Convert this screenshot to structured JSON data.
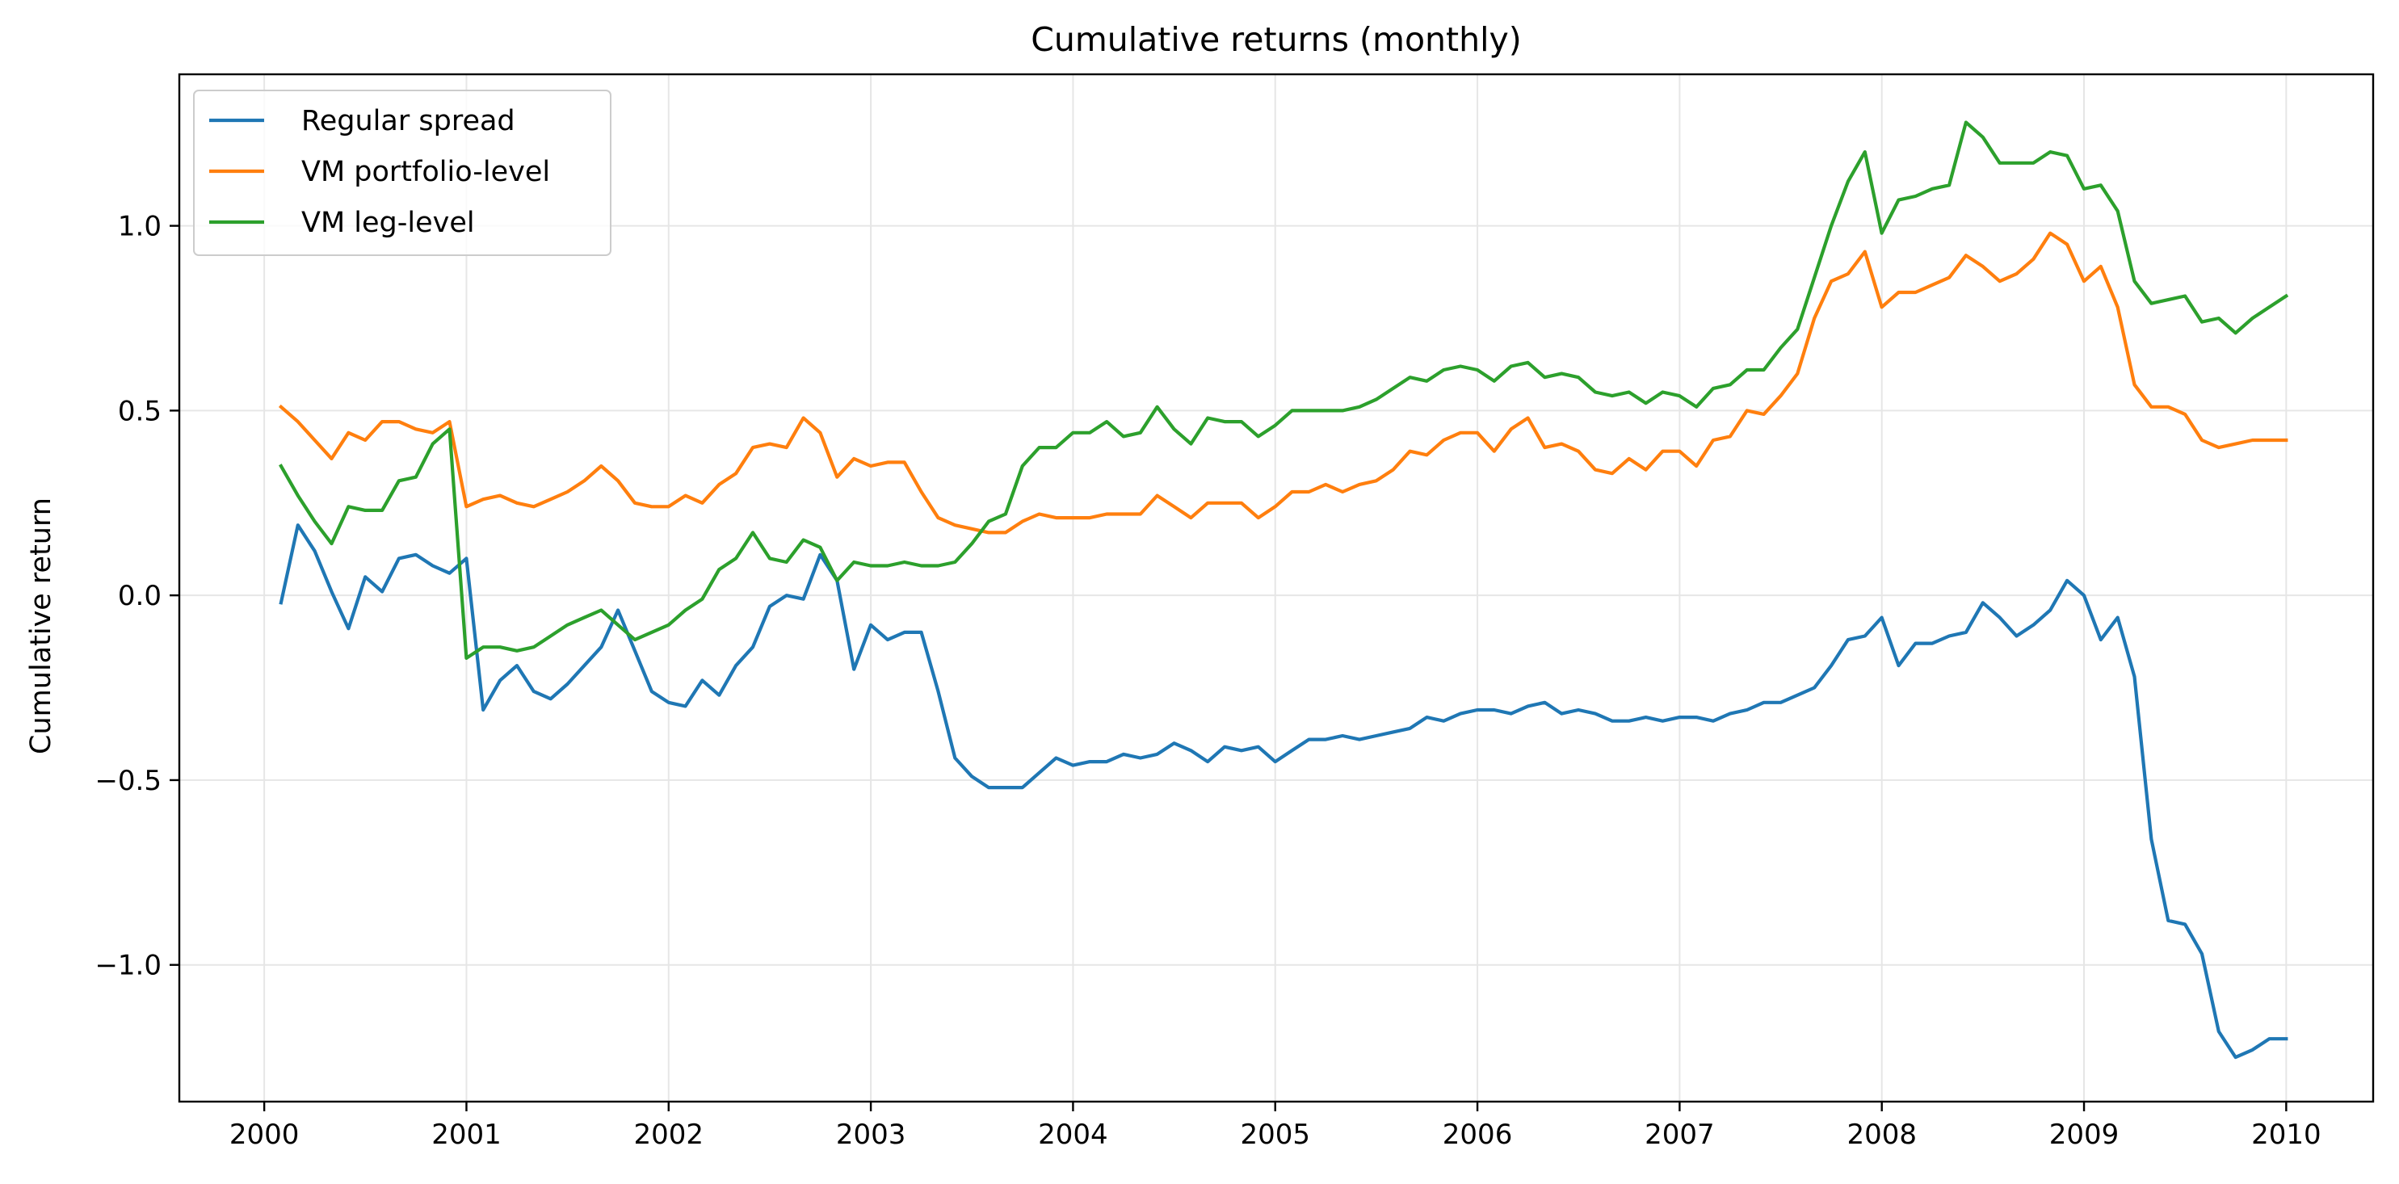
{
  "chart_data": {
    "type": "line",
    "title": "Cumulative returns (monthly)",
    "xlabel": "",
    "ylabel": "Cumulative return",
    "xlim": [
      1999.58,
      2010.43
    ],
    "ylim": [
      -1.37,
      1.41
    ],
    "x_ticks": [
      2000,
      2001,
      2002,
      2003,
      2004,
      2005,
      2006,
      2007,
      2008,
      2009,
      2010
    ],
    "x_tick_labels": [
      "2000",
      "2001",
      "2002",
      "2003",
      "2004",
      "2005",
      "2006",
      "2007",
      "2008",
      "2009",
      "2010"
    ],
    "y_ticks": [
      -1.0,
      -0.5,
      0.0,
      0.5,
      1.0
    ],
    "y_tick_labels": [
      "−1.0",
      "−0.5",
      "0.0",
      "0.5",
      "1.0"
    ],
    "grid": true,
    "legend_position": "upper-left",
    "x_start": 2000.083,
    "x_step": 0.0833333,
    "series": [
      {
        "name": "Regular spread",
        "color": "#1f77b4",
        "values": [
          -0.02,
          0.19,
          0.12,
          0.01,
          -0.09,
          0.05,
          0.01,
          0.1,
          0.11,
          0.08,
          0.06,
          0.1,
          -0.31,
          -0.23,
          -0.19,
          -0.26,
          -0.28,
          -0.24,
          -0.19,
          -0.14,
          -0.04,
          -0.15,
          -0.26,
          -0.29,
          -0.3,
          -0.23,
          -0.27,
          -0.19,
          -0.14,
          -0.03,
          0.0,
          -0.01,
          0.11,
          0.04,
          -0.2,
          -0.08,
          -0.12,
          -0.1,
          -0.1,
          -0.26,
          -0.44,
          -0.49,
          -0.52,
          -0.52,
          -0.52,
          -0.48,
          -0.44,
          -0.46,
          -0.45,
          -0.45,
          -0.43,
          -0.44,
          -0.43,
          -0.4,
          -0.42,
          -0.45,
          -0.41,
          -0.42,
          -0.41,
          -0.45,
          -0.42,
          -0.39,
          -0.39,
          -0.38,
          -0.39,
          -0.38,
          -0.37,
          -0.36,
          -0.33,
          -0.34,
          -0.32,
          -0.31,
          -0.31,
          -0.32,
          -0.3,
          -0.29,
          -0.32,
          -0.31,
          -0.32,
          -0.34,
          -0.34,
          -0.33,
          -0.34,
          -0.33,
          -0.33,
          -0.34,
          -0.32,
          -0.31,
          -0.29,
          -0.29,
          -0.27,
          -0.25,
          -0.19,
          -0.12,
          -0.11,
          -0.06,
          -0.19,
          -0.13,
          -0.13,
          -0.11,
          -0.1,
          -0.02,
          -0.06,
          -0.11,
          -0.08,
          -0.04,
          0.04,
          0.0,
          -0.12,
          -0.06,
          -0.22,
          -0.66,
          -0.88,
          -0.89,
          -0.97,
          -1.18,
          -1.25,
          -1.23,
          -1.2,
          -1.2
        ]
      },
      {
        "name": "VM portfolio-level",
        "color": "#ff7f0e",
        "values": [
          0.51,
          0.47,
          0.42,
          0.37,
          0.44,
          0.42,
          0.47,
          0.47,
          0.45,
          0.44,
          0.47,
          0.24,
          0.26,
          0.27,
          0.25,
          0.24,
          0.26,
          0.28,
          0.31,
          0.35,
          0.31,
          0.25,
          0.24,
          0.24,
          0.27,
          0.25,
          0.3,
          0.33,
          0.4,
          0.41,
          0.4,
          0.48,
          0.44,
          0.32,
          0.37,
          0.35,
          0.36,
          0.36,
          0.28,
          0.21,
          0.19,
          0.18,
          0.17,
          0.17,
          0.2,
          0.22,
          0.21,
          0.21,
          0.21,
          0.22,
          0.22,
          0.22,
          0.27,
          0.24,
          0.21,
          0.25,
          0.25,
          0.25,
          0.21,
          0.24,
          0.28,
          0.28,
          0.3,
          0.28,
          0.3,
          0.31,
          0.34,
          0.39,
          0.38,
          0.42,
          0.44,
          0.44,
          0.39,
          0.45,
          0.48,
          0.4,
          0.41,
          0.39,
          0.34,
          0.33,
          0.37,
          0.34,
          0.39,
          0.39,
          0.35,
          0.42,
          0.43,
          0.5,
          0.49,
          0.54,
          0.6,
          0.75,
          0.85,
          0.87,
          0.93,
          0.78,
          0.82,
          0.82,
          0.84,
          0.86,
          0.92,
          0.89,
          0.85,
          0.87,
          0.91,
          0.98,
          0.95,
          0.85,
          0.89,
          0.78,
          0.57,
          0.51,
          0.51,
          0.49,
          0.42,
          0.4,
          0.41,
          0.42,
          0.42,
          0.42
        ]
      },
      {
        "name": "VM leg-level",
        "color": "#2ca02c",
        "values": [
          0.35,
          0.27,
          0.2,
          0.14,
          0.24,
          0.23,
          0.23,
          0.31,
          0.32,
          0.41,
          0.45,
          -0.17,
          -0.14,
          -0.14,
          -0.15,
          -0.14,
          -0.11,
          -0.08,
          -0.06,
          -0.04,
          -0.08,
          -0.12,
          -0.1,
          -0.08,
          -0.04,
          -0.01,
          0.07,
          0.1,
          0.17,
          0.1,
          0.09,
          0.15,
          0.13,
          0.04,
          0.09,
          0.08,
          0.08,
          0.09,
          0.08,
          0.08,
          0.09,
          0.14,
          0.2,
          0.22,
          0.35,
          0.4,
          0.4,
          0.44,
          0.44,
          0.47,
          0.43,
          0.44,
          0.51,
          0.45,
          0.41,
          0.48,
          0.47,
          0.47,
          0.43,
          0.46,
          0.5,
          0.5,
          0.5,
          0.5,
          0.51,
          0.53,
          0.56,
          0.59,
          0.58,
          0.61,
          0.62,
          0.61,
          0.58,
          0.62,
          0.63,
          0.59,
          0.6,
          0.59,
          0.55,
          0.54,
          0.55,
          0.52,
          0.55,
          0.54,
          0.51,
          0.56,
          0.57,
          0.61,
          0.61,
          0.67,
          0.72,
          0.86,
          1.0,
          1.12,
          1.2,
          0.98,
          1.07,
          1.08,
          1.1,
          1.11,
          1.28,
          1.24,
          1.17,
          1.17,
          1.17,
          1.2,
          1.19,
          1.1,
          1.11,
          1.04,
          0.85,
          0.79,
          0.8,
          0.81,
          0.74,
          0.75,
          0.71,
          0.75,
          0.78,
          0.81
        ]
      }
    ]
  }
}
